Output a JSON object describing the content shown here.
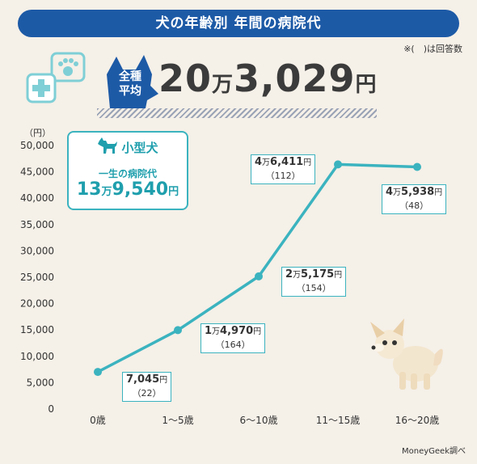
{
  "header": {
    "title": "犬の年齢別 年間の病院代",
    "note": "※(　)は回答数"
  },
  "average": {
    "badge_line1": "全種",
    "badge_line2": "平均",
    "value_a": "20",
    "unit_man": "万",
    "value_b": "3,029",
    "unit_yen": "円"
  },
  "small_dog": {
    "title": "小型犬",
    "subtitle": "一生の病院代",
    "value_a": "13",
    "unit_man": "万",
    "value_b": "9,540",
    "unit_yen": "円"
  },
  "chart_data": {
    "type": "line",
    "categories": [
      "0歳",
      "1〜5歳",
      "6〜10歳",
      "11〜15歳",
      "16〜20歳"
    ],
    "values": [
      7045,
      14970,
      25175,
      46411,
      45938
    ],
    "counts": [
      22,
      164,
      154,
      112,
      48
    ],
    "ylabel": "（円）",
    "ylim": [
      0,
      50000
    ],
    "yticks": [
      "0",
      "5,000",
      "10,000",
      "15,000",
      "20,000",
      "25,000",
      "30,000",
      "35,000",
      "40,000",
      "45,000",
      "50,000"
    ],
    "grid": false,
    "line_color": "#3bb3bf",
    "labels": [
      {
        "main": "7,045",
        "man": "",
        "yen": "円",
        "count": "（22）"
      },
      {
        "main": "1",
        "man": "万",
        "main2": "4,970",
        "yen": "円",
        "count": "（164）"
      },
      {
        "main": "2",
        "man": "万",
        "main2": "5,175",
        "yen": "円",
        "count": "（154）"
      },
      {
        "main": "4",
        "man": "万",
        "main2": "6,411",
        "yen": "円",
        "count": "（112）"
      },
      {
        "main": "4",
        "man": "万",
        "main2": "5,938",
        "yen": "円",
        "count": "（48）"
      }
    ]
  },
  "credit": "MoneyGeek調べ",
  "colors": {
    "background": "#f5f0e8",
    "banner": "#1d5aa6",
    "accent": "#3bb3bf",
    "text": "#3b3b3b"
  }
}
